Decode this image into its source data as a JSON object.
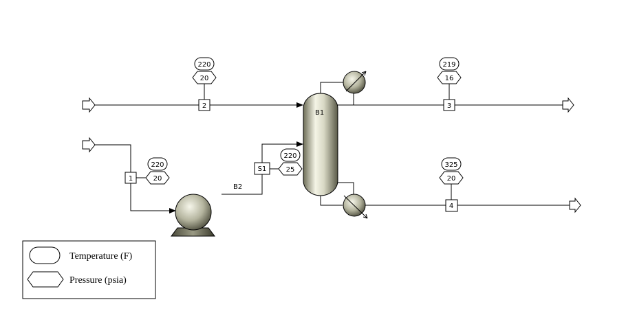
{
  "blocks": {
    "column": "B1",
    "pump": "B2"
  },
  "streams": {
    "s1": "1",
    "s2": "2",
    "s3": "3",
    "s4": "4",
    "sS1": "S1"
  },
  "tags": {
    "stream2": {
      "temperature": "220",
      "pressure": "20"
    },
    "stream3": {
      "temperature": "219",
      "pressure": "16"
    },
    "stream1": {
      "temperature": "220",
      "pressure": "20"
    },
    "streamS1": {
      "temperature": "220",
      "pressure": "25"
    },
    "stream4": {
      "temperature": "325",
      "pressure": "20"
    }
  },
  "legend": {
    "temperature_label": "Temperature (F)",
    "pressure_label": "Pressure (psia)"
  }
}
